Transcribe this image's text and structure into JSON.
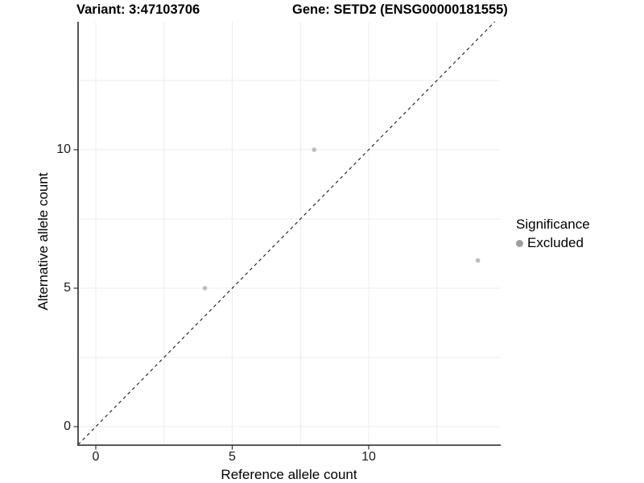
{
  "titles": {
    "variant": "Variant: 3:47103706",
    "gene": "Gene: SETD2 (ENSG00000181555)"
  },
  "axes": {
    "x": {
      "label": "Reference allele count"
    },
    "y": {
      "label": "Alternative allele count"
    }
  },
  "legend": {
    "title": "Significance",
    "items": [
      {
        "label": "Excluded",
        "color": "#9e9e9e"
      }
    ]
  },
  "colors": {
    "point": "#bdbdbd",
    "legend_key": "#9e9e9e",
    "grid": "#ececec",
    "axis_line": "#404040",
    "tick_mark": "#333333",
    "reference_line": "#1a1a1a",
    "background": "#ffffff"
  },
  "chart_data": {
    "type": "scatter",
    "title": "Variant: 3:47103706    Gene: SETD2 (ENSG00000181555)",
    "xlabel": "Reference allele count",
    "ylabel": "Alternative allele count",
    "series": [
      {
        "name": "Excluded",
        "color": "#bdbdbd",
        "points": [
          {
            "x": 4,
            "y": 5
          },
          {
            "x": 8,
            "y": 10
          },
          {
            "x": 14,
            "y": 6
          }
        ]
      }
    ],
    "reference_line": {
      "type": "identity",
      "equation": "y = x",
      "style": "dashed"
    },
    "xlim": [
      -0.65,
      14.84
    ],
    "ylim": [
      -0.67,
      14.62
    ],
    "x_ticks": [
      0,
      5,
      10
    ],
    "y_ticks": [
      0,
      5,
      10
    ],
    "x_minor_ticks": [
      2.5,
      7.5,
      12.5
    ],
    "y_minor_ticks": [
      2.5,
      7.5,
      12.5
    ],
    "grid": true,
    "legend_position": "right",
    "legend_title": "Significance"
  }
}
